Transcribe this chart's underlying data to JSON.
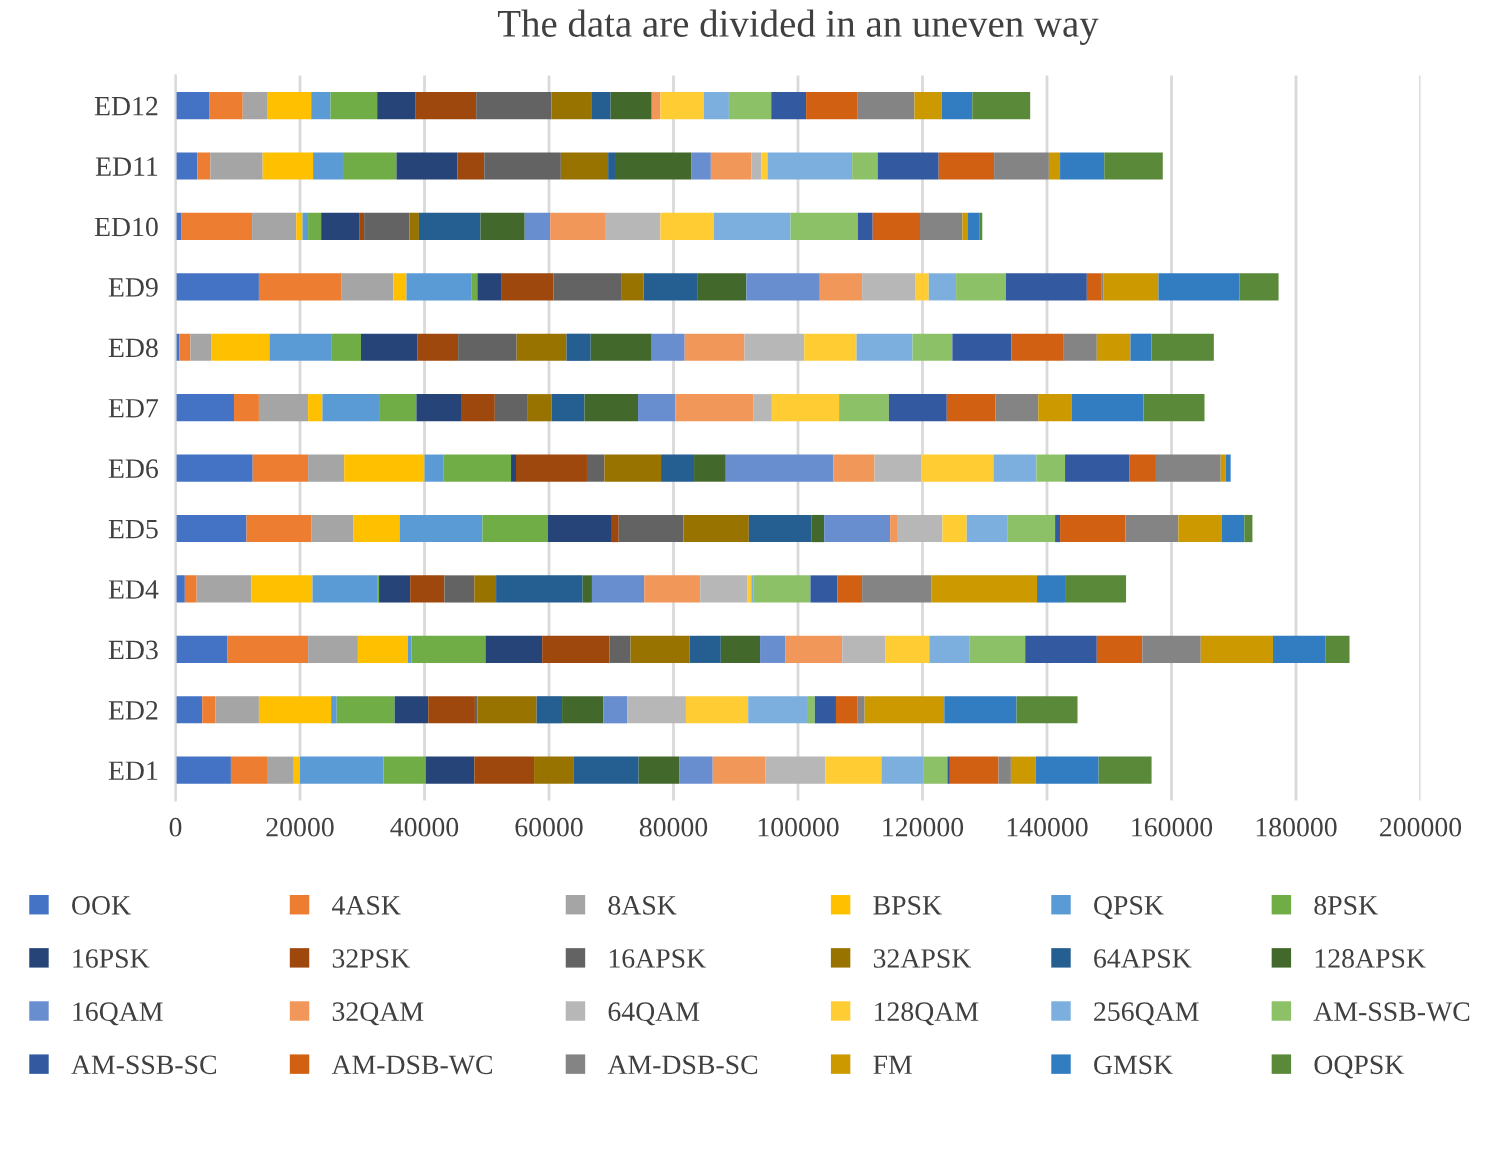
{
  "chart_data": {
    "type": "bar",
    "orientation": "horizontal",
    "stacked": true,
    "title": "The data are divided in an uneven way",
    "categories": [
      "ED12",
      "ED11",
      "ED10",
      "ED9",
      "ED8",
      "ED7",
      "ED6",
      "ED5",
      "ED4",
      "ED3",
      "ED2",
      "ED1"
    ],
    "xlim": [
      0,
      200000
    ],
    "xticks": [
      0,
      20000,
      40000,
      60000,
      80000,
      100000,
      120000,
      140000,
      160000,
      180000,
      200000
    ],
    "grid": "x",
    "legend": "bottom",
    "series": [
      {
        "name": "OOK",
        "color": "#4472c4",
        "values": [
          5400,
          3500,
          900,
          13400,
          600,
          9400,
          12400,
          11400,
          1500,
          8300,
          4300,
          8900
        ]
      },
      {
        "name": "4ASK",
        "color": "#ed7d31",
        "values": [
          5400,
          2100,
          11400,
          13300,
          1800,
          4000,
          8900,
          10400,
          1900,
          13000,
          2100,
          5800
        ]
      },
      {
        "name": "8ASK",
        "color": "#a5a5a5",
        "values": [
          3900,
          8400,
          7100,
          8300,
          3400,
          7900,
          5800,
          6800,
          8800,
          8000,
          7000,
          4300
        ]
      },
      {
        "name": "BPSK",
        "color": "#ffc000",
        "values": [
          7100,
          8100,
          1000,
          2100,
          9300,
          2300,
          12900,
          7400,
          9800,
          8000,
          11600,
          1000
        ]
      },
      {
        "name": "QPSK",
        "color": "#5b9bd5",
        "values": [
          3100,
          4800,
          900,
          10500,
          9900,
          9100,
          3100,
          13300,
          10400,
          600,
          900,
          13400
        ]
      },
      {
        "name": "8PSK",
        "color": "#70ad47",
        "values": [
          7500,
          8600,
          2100,
          900,
          4800,
          6000,
          10800,
          10500,
          300,
          11900,
          9300,
          6800
        ]
      },
      {
        "name": "16PSK",
        "color": "#264478",
        "values": [
          6100,
          9800,
          6100,
          3800,
          9100,
          7300,
          800,
          10300,
          5000,
          9100,
          5400,
          7800
        ]
      },
      {
        "name": "32PSK",
        "color": "#9e480e",
        "values": [
          9800,
          4300,
          800,
          8400,
          6500,
          5300,
          11400,
          1100,
          5500,
          10800,
          7500,
          9600
        ]
      },
      {
        "name": "16APSK",
        "color": "#636363",
        "values": [
          12100,
          12300,
          7300,
          11000,
          9400,
          5300,
          2800,
          10400,
          4800,
          3400,
          400,
          0
        ]
      },
      {
        "name": "32APSK",
        "color": "#997300",
        "values": [
          6500,
          7600,
          1500,
          3500,
          8000,
          3800,
          9100,
          10500,
          3500,
          9500,
          9500,
          6400
        ]
      },
      {
        "name": "64APSK",
        "color": "#255e91",
        "values": [
          3000,
          1100,
          9900,
          8600,
          3900,
          5300,
          5300,
          10100,
          13900,
          5000,
          4100,
          10400
        ]
      },
      {
        "name": "128APSK",
        "color": "#43682b",
        "values": [
          6600,
          12300,
          7100,
          7900,
          9800,
          8600,
          5100,
          2000,
          1500,
          6300,
          6600,
          6500
        ]
      },
      {
        "name": "16QAM",
        "color": "#698ed0",
        "values": [
          0,
          3100,
          4100,
          11800,
          5300,
          6000,
          17300,
          10600,
          8400,
          4100,
          3900,
          5400
        ]
      },
      {
        "name": "32QAM",
        "color": "#f1975a",
        "values": [
          1400,
          6500,
          8800,
          6800,
          9600,
          12500,
          6600,
          1100,
          9000,
          9100,
          0,
          8500
        ]
      },
      {
        "name": "64QAM",
        "color": "#b7b7b7",
        "values": [
          0,
          1600,
          8900,
          8600,
          9600,
          3000,
          7500,
          7300,
          7600,
          6900,
          9400,
          9600
        ]
      },
      {
        "name": "128QAM",
        "color": "#ffcd33",
        "values": [
          7000,
          1000,
          8600,
          2100,
          8400,
          10800,
          11600,
          3900,
          600,
          7100,
          10000,
          9000
        ]
      },
      {
        "name": "256QAM",
        "color": "#7cafdd",
        "values": [
          4000,
          13600,
          12300,
          4400,
          9000,
          0,
          6900,
          6600,
          400,
          6400,
          9600,
          6800
        ]
      },
      {
        "name": "AM-SSB-WC",
        "color": "#8cc168",
        "values": [
          6800,
          4100,
          10800,
          8000,
          6400,
          8000,
          4600,
          7600,
          9100,
          9000,
          1100,
          3800
        ]
      },
      {
        "name": "AM-SSB-SC",
        "color": "#335aa1",
        "values": [
          5600,
          9800,
          2400,
          13000,
          9500,
          9300,
          10300,
          800,
          4300,
          11500,
          3400,
          400
        ]
      },
      {
        "name": "AM-DSB-WC",
        "color": "#d26012",
        "values": [
          8300,
          8900,
          7600,
          2400,
          8400,
          7800,
          4300,
          10500,
          4000,
          7300,
          3500,
          7800
        ]
      },
      {
        "name": "AM-DSB-SC",
        "color": "#848484",
        "values": [
          9100,
          8800,
          6800,
          300,
          5300,
          6900,
          10400,
          8500,
          11100,
          9400,
          1100,
          2000
        ]
      },
      {
        "name": "FM",
        "color": "#cc9a00",
        "values": [
          4400,
          1800,
          900,
          8800,
          5400,
          5400,
          800,
          7000,
          17000,
          11600,
          12800,
          4000
        ]
      },
      {
        "name": "GMSK",
        "color": "#327dc2",
        "values": [
          4900,
          7100,
          1900,
          13000,
          3400,
          11500,
          800,
          3600,
          4500,
          8400,
          11600,
          10100
        ]
      },
      {
        "name": "OQPSK",
        "color": "#5a8a39",
        "values": [
          9300,
          9400,
          400,
          6300,
          10000,
          9800,
          0,
          1300,
          9800,
          3900,
          9800,
          8500
        ]
      }
    ]
  }
}
